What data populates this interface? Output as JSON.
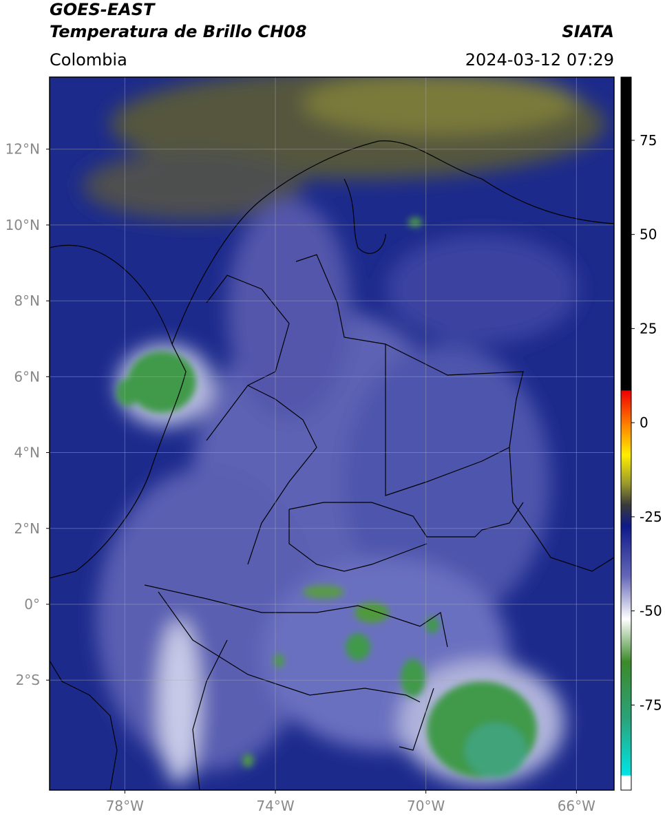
{
  "header": {
    "title": "GOES-EAST",
    "subtitle": "Temperatura de Brillo CH08",
    "source": "SIATA",
    "region": "Colombia",
    "datetime": "2024-03-12 07:29"
  },
  "map": {
    "xlim": [
      -80,
      -65
    ],
    "ylim": [
      -4.9,
      13.9
    ],
    "yticks": [
      {
        "value": 12,
        "label": "12°N"
      },
      {
        "value": 10,
        "label": "10°N"
      },
      {
        "value": 8,
        "label": "8°N"
      },
      {
        "value": 6,
        "label": "6°N"
      },
      {
        "value": 4,
        "label": "4°N"
      },
      {
        "value": 2,
        "label": "2°N"
      },
      {
        "value": 0,
        "label": "0°"
      },
      {
        "value": -2,
        "label": "2°S"
      }
    ],
    "xticks": [
      {
        "value": -78,
        "label": "78°W"
      },
      {
        "value": -74,
        "label": "74°W"
      },
      {
        "value": -70,
        "label": "70°W"
      },
      {
        "value": -66,
        "label": "66°W"
      }
    ]
  },
  "colorbar": {
    "ylim": [
      -97.6,
      91.8
    ],
    "yticks": [
      75,
      50,
      25,
      0,
      -25,
      -50,
      -75
    ]
  }
}
